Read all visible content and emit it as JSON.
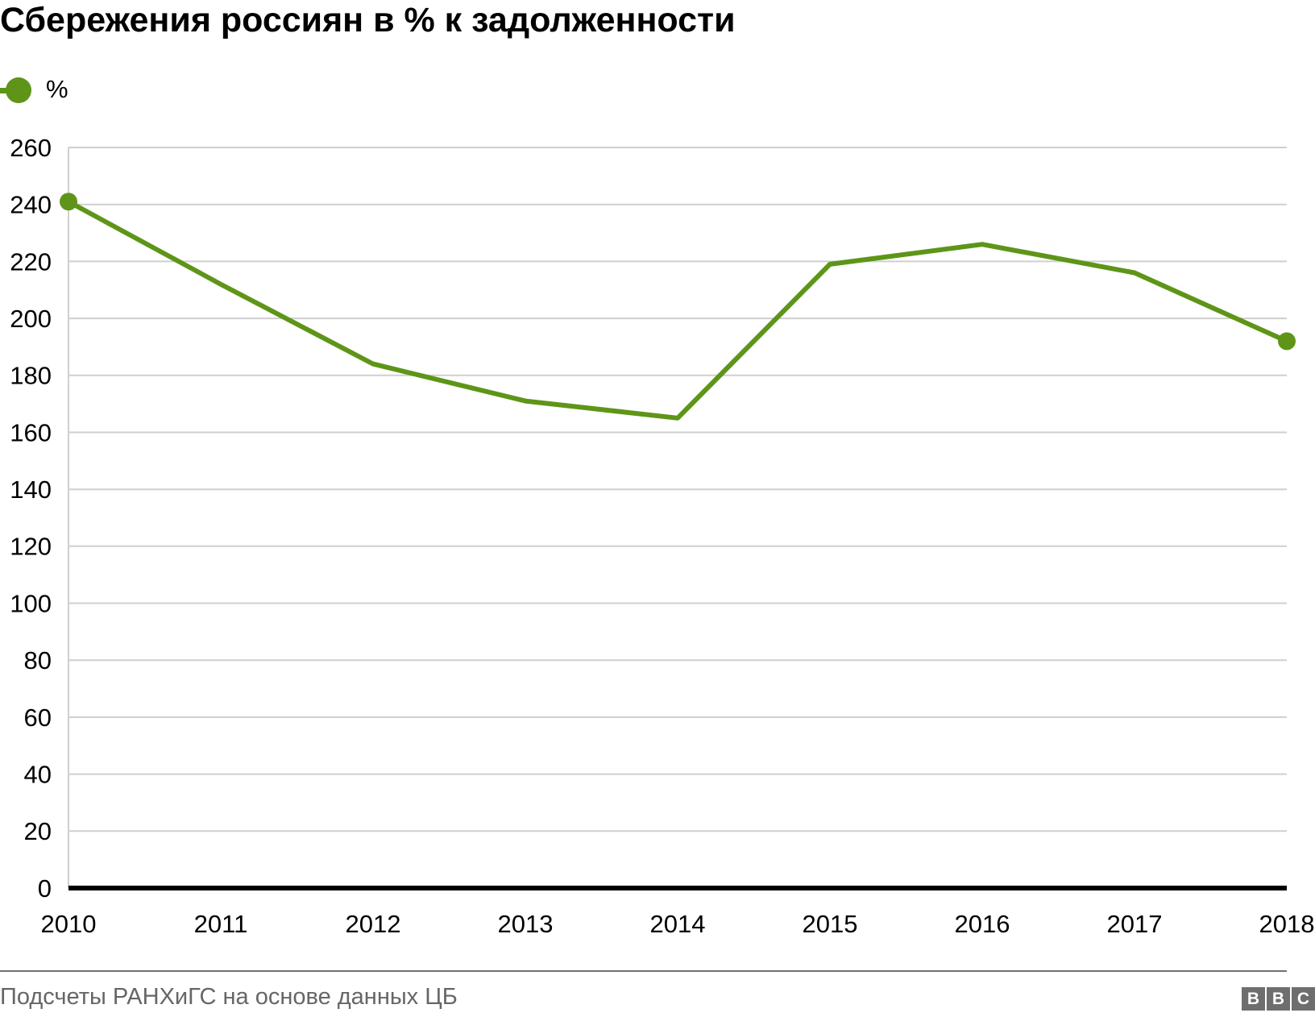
{
  "title": "Сбережения россиян в % к задолженности",
  "legend": {
    "label": "%"
  },
  "chart_data": {
    "type": "line",
    "title": "Сбережения россиян в % к задолженности",
    "x": [
      2010,
      2011,
      2012,
      2013,
      2014,
      2015,
      2016,
      2017,
      2018
    ],
    "series": [
      {
        "name": "%",
        "values": [
          241,
          212,
          184,
          171,
          165,
          219,
          226,
          216,
          192
        ]
      }
    ],
    "xlabel": "",
    "ylabel": "%",
    "ylim": [
      0,
      260
    ],
    "ytick_step": 20,
    "yticks": [
      0,
      20,
      40,
      60,
      80,
      100,
      120,
      140,
      160,
      180,
      200,
      220,
      240,
      260
    ],
    "grid": true,
    "legend_position": "top-left",
    "endpoint_dots": true
  },
  "colors": {
    "line": "#5E9518",
    "grid": "#cfcfcf",
    "axis": "#000000",
    "tick_text": "#000000",
    "footer_text": "#666666",
    "divider": "#707070",
    "logo_bg": "#6e6e6e"
  },
  "footer": {
    "source": "Подсчеты РАНХиГС на основе данных ЦБ",
    "logo_letters": [
      "B",
      "B",
      "C"
    ]
  }
}
